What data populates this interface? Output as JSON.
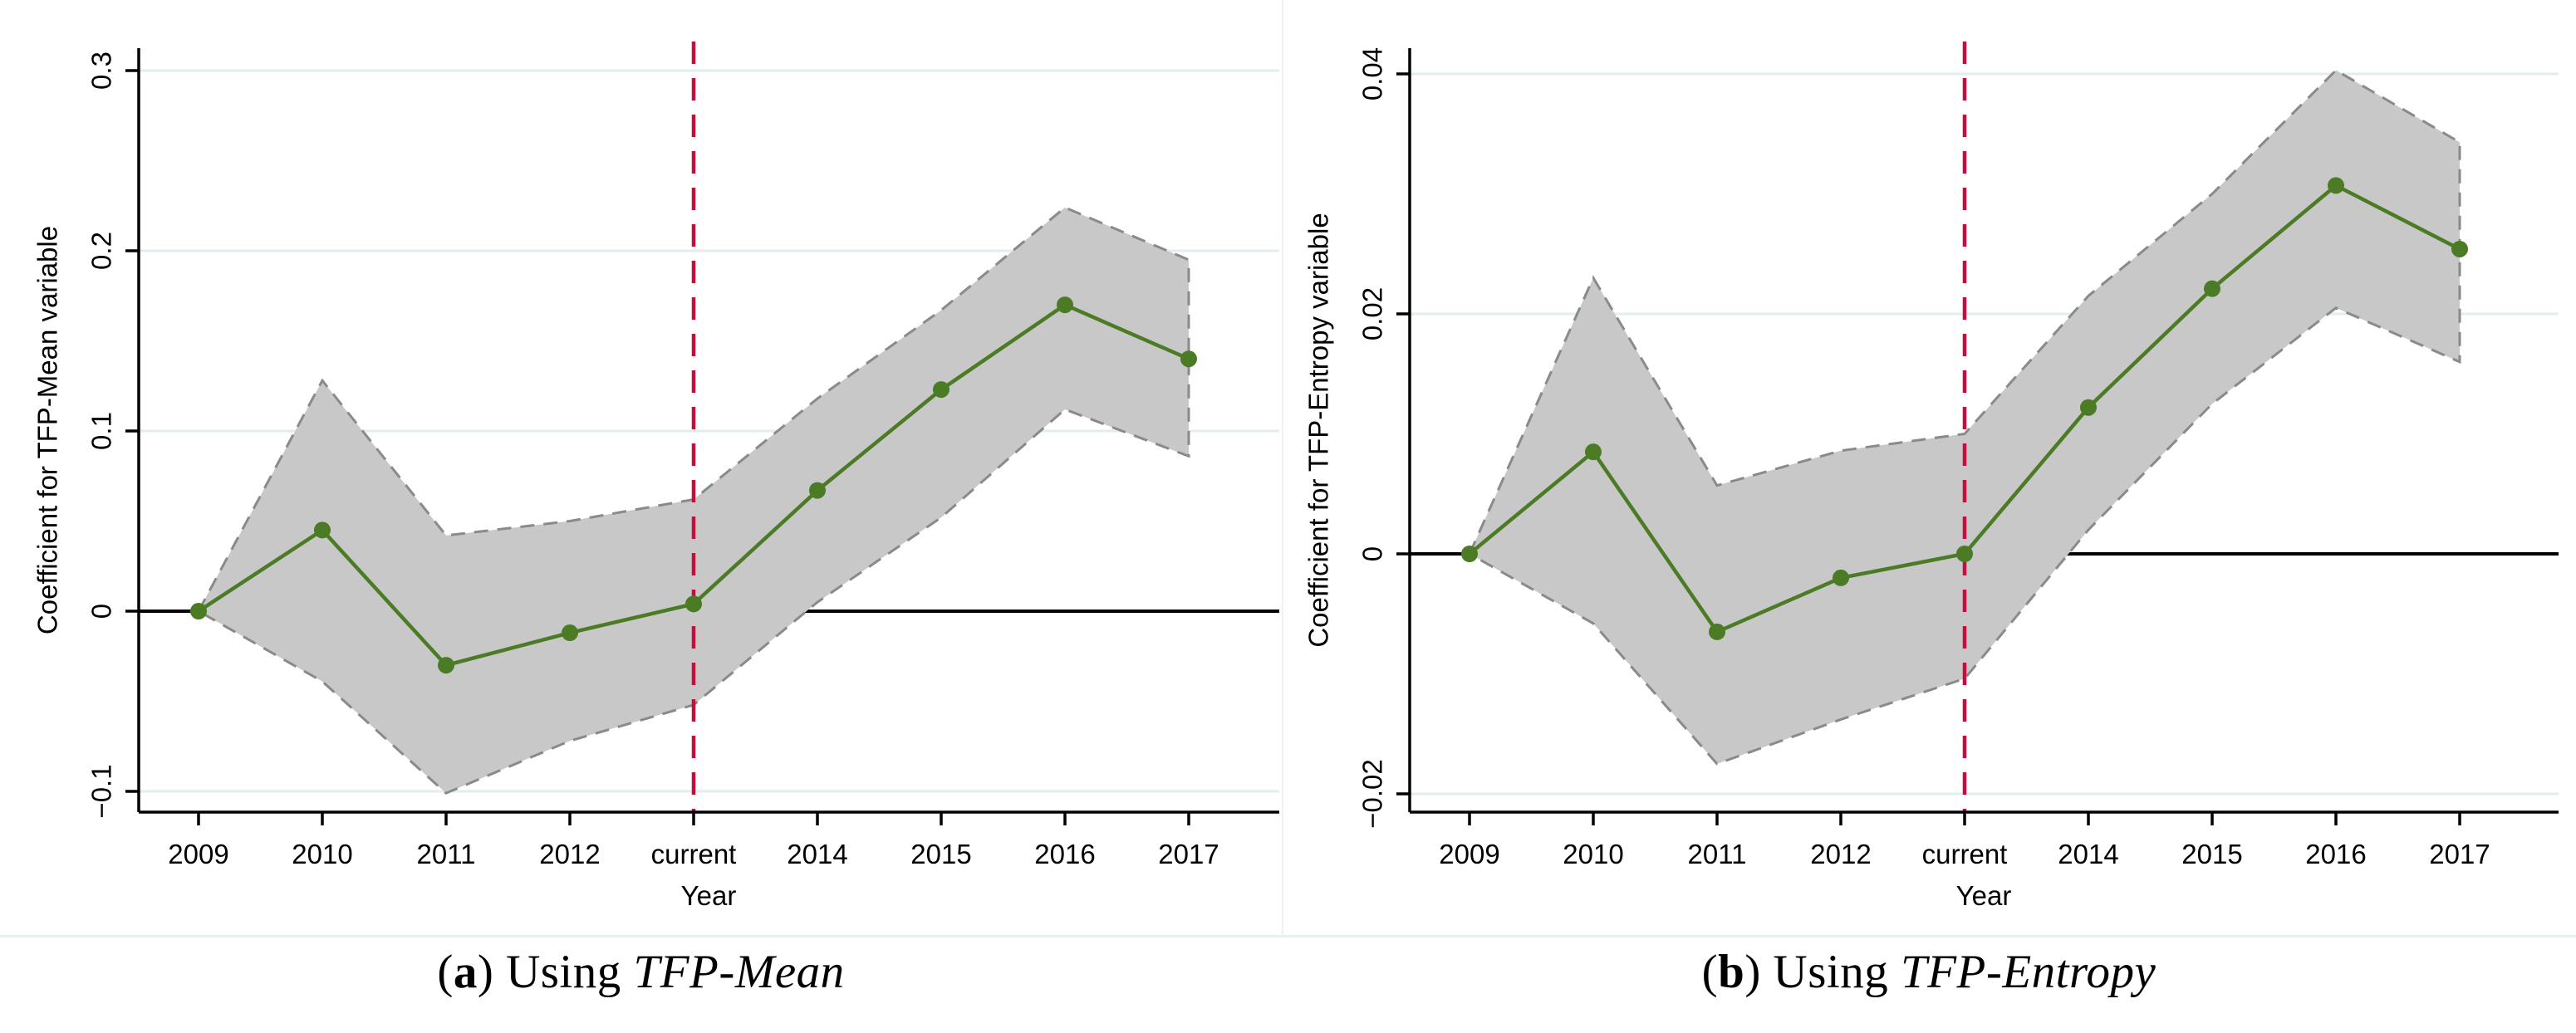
{
  "figure": {
    "captions": [
      {
        "open": "(",
        "letter": "a",
        "mid": ") Using ",
        "term": "TFP-Mean"
      },
      {
        "open": "(",
        "letter": "b",
        "mid": ") Using ",
        "term": "TFP-Entropy"
      }
    ]
  },
  "chart_data": [
    {
      "type": "line",
      "title": "",
      "xlabel": "Year",
      "ylabel": "Coefficient for TFP-Mean variable",
      "categories": [
        "2009",
        "2010",
        "2011",
        "2012",
        "current",
        "2014",
        "2015",
        "2016",
        "2017"
      ],
      "reference_line_category": "current",
      "zero_line": true,
      "grid": true,
      "legend_position": "none",
      "ylim": [
        -0.115,
        0.315
      ],
      "y_ticks": [
        -0.1,
        0,
        0.1,
        0.2,
        0.3
      ],
      "y_tick_labels": [
        "−0.1",
        "0",
        "0.1",
        "0.2",
        "0.3"
      ],
      "series": [
        {
          "name": "coefficient",
          "values": [
            0,
            0.045,
            -0.03,
            -0.012,
            0.004,
            0.067,
            0.123,
            0.17,
            0.14
          ]
        },
        {
          "name": "ci_upper",
          "values": [
            0,
            0.128,
            0.042,
            0.05,
            0.062,
            0.118,
            0.167,
            0.224,
            0.195
          ]
        },
        {
          "name": "ci_lower",
          "values": [
            0,
            -0.039,
            -0.101,
            -0.072,
            -0.052,
            0.005,
            0.052,
            0.112,
            0.086
          ]
        }
      ],
      "colors": {
        "line": "#4b7b24",
        "marker": "#4b7b24",
        "band_fill": "#c8c8c8",
        "band_border": "#8a8a8a",
        "reference_line": "#c40f3e",
        "zero_line": "#000000",
        "grid": "#e1edee",
        "axis": "#000000"
      }
    },
    {
      "type": "line",
      "title": "",
      "xlabel": "Year",
      "ylabel": "Coefficient for TFP-Entropy variable",
      "categories": [
        "2009",
        "2010",
        "2011",
        "2012",
        "current",
        "2014",
        "2015",
        "2016",
        "2017"
      ],
      "reference_line_category": "current",
      "zero_line": true,
      "grid": true,
      "legend_position": "none",
      "ylim": [
        -0.023,
        0.0425
      ],
      "y_ticks": [
        -0.02,
        0,
        0.02,
        0.04
      ],
      "y_tick_labels": [
        "−0.02",
        "0",
        "0.02",
        "0.04"
      ],
      "series": [
        {
          "name": "coefficient",
          "values": [
            0,
            0.0085,
            -0.0065,
            -0.002,
            0.0,
            0.0122,
            0.0221,
            0.0307,
            0.0254
          ]
        },
        {
          "name": "ci_upper",
          "values": [
            0,
            0.023,
            0.0057,
            0.0086,
            0.01,
            0.0215,
            0.03,
            0.0403,
            0.0343
          ]
        },
        {
          "name": "ci_lower",
          "values": [
            0,
            -0.0058,
            -0.0175,
            -0.0138,
            -0.0104,
            0.002,
            0.0125,
            0.0205,
            0.016
          ]
        }
      ],
      "colors": {
        "line": "#4b7b24",
        "marker": "#4b7b24",
        "band_fill": "#c8c8c8",
        "band_border": "#8a8a8a",
        "reference_line": "#c40f3e",
        "zero_line": "#000000",
        "grid": "#e1edee",
        "axis": "#000000"
      }
    }
  ]
}
